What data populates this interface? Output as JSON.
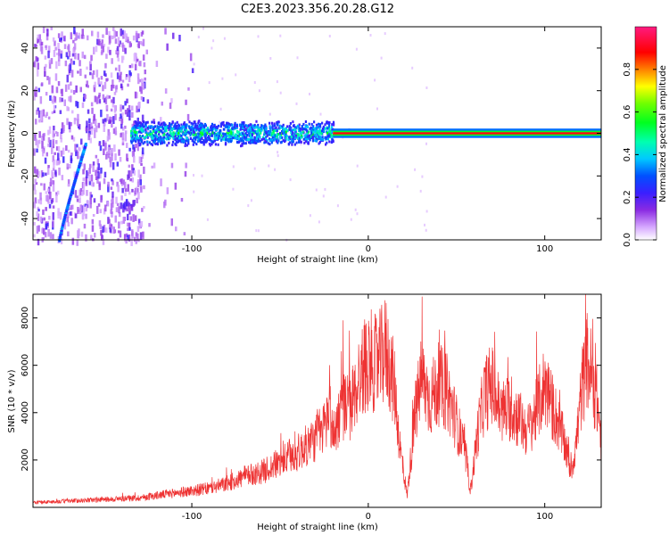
{
  "title": "C2E3.2023.356.20.28.G12",
  "chart_data": [
    {
      "type": "heatmap",
      "xlabel": "Height of straight line (km)",
      "ylabel": "Frequency (Hz)",
      "xlim": [
        -190,
        132
      ],
      "ylim": [
        -50,
        50
      ],
      "xticks": [
        -100,
        0,
        100
      ],
      "yticks": [
        -40,
        -20,
        0,
        20,
        40
      ],
      "colorbar": {
        "label": "Normalized spectral amplitude",
        "range": [
          0,
          1
        ],
        "ticks": [
          "0.0",
          "0.2",
          "0.4",
          "0.6",
          "0.8"
        ],
        "colormap": "gist_rainbow_r"
      },
      "features": {
        "stable_line": {
          "freq_hz": 0,
          "x_start_km": -20,
          "x_end_km": 132,
          "amplitude": 1.0
        },
        "noisy_band": {
          "freq_center_hz": 0,
          "half_width_hz": 5,
          "x_start_km": -135,
          "x_end_km": -20,
          "amplitude_range": [
            0.2,
            0.6
          ]
        },
        "chirp_track": {
          "start": [
            -175,
            -50
          ],
          "end": [
            -160,
            -5
          ]
        },
        "background_speckle": {
          "x_start_km": -190,
          "x_end_km": -100
        }
      }
    },
    {
      "type": "line",
      "xlabel": "Height of straight line (km)",
      "ylabel": "SNR (10 * v/v)",
      "xlim": [
        -190,
        132
      ],
      "ylim": [
        0,
        9000
      ],
      "xticks": [
        -100,
        0,
        100
      ],
      "yticks": [
        2000,
        4000,
        6000,
        8000
      ],
      "color": "#ee3333",
      "series_points": [
        [
          -190,
          200
        ],
        [
          -175,
          250
        ],
        [
          -160,
          300
        ],
        [
          -145,
          350
        ],
        [
          -130,
          400
        ],
        [
          -115,
          550
        ],
        [
          -100,
          700
        ],
        [
          -90,
          800
        ],
        [
          -80,
          1000
        ],
        [
          -70,
          1300
        ],
        [
          -60,
          1500
        ],
        [
          -50,
          1900
        ],
        [
          -40,
          2300
        ],
        [
          -30,
          2900
        ],
        [
          -25,
          3400
        ],
        [
          -22,
          4200
        ],
        [
          -20,
          3000
        ],
        [
          -15,
          4300
        ],
        [
          -10,
          4200
        ],
        [
          -5,
          5500
        ],
        [
          0,
          6300
        ],
        [
          5,
          6000
        ],
        [
          10,
          6700
        ],
        [
          15,
          5000
        ],
        [
          18,
          2500
        ],
        [
          22,
          500
        ],
        [
          26,
          3500
        ],
        [
          30,
          5500
        ],
        [
          35,
          4500
        ],
        [
          40,
          5200
        ],
        [
          45,
          4800
        ],
        [
          50,
          3600
        ],
        [
          55,
          2200
        ],
        [
          58,
          700
        ],
        [
          62,
          3200
        ],
        [
          66,
          4800
        ],
        [
          70,
          5200
        ],
        [
          75,
          4000
        ],
        [
          80,
          4200
        ],
        [
          85,
          3800
        ],
        [
          90,
          3200
        ],
        [
          95,
          4000
        ],
        [
          100,
          5200
        ],
        [
          104,
          4300
        ],
        [
          108,
          3500
        ],
        [
          112,
          2500
        ],
        [
          115,
          1500
        ],
        [
          118,
          2800
        ],
        [
          121,
          5000
        ],
        [
          124,
          6200
        ],
        [
          127,
          5500
        ],
        [
          130,
          4300
        ],
        [
          132,
          2800
        ]
      ]
    }
  ]
}
